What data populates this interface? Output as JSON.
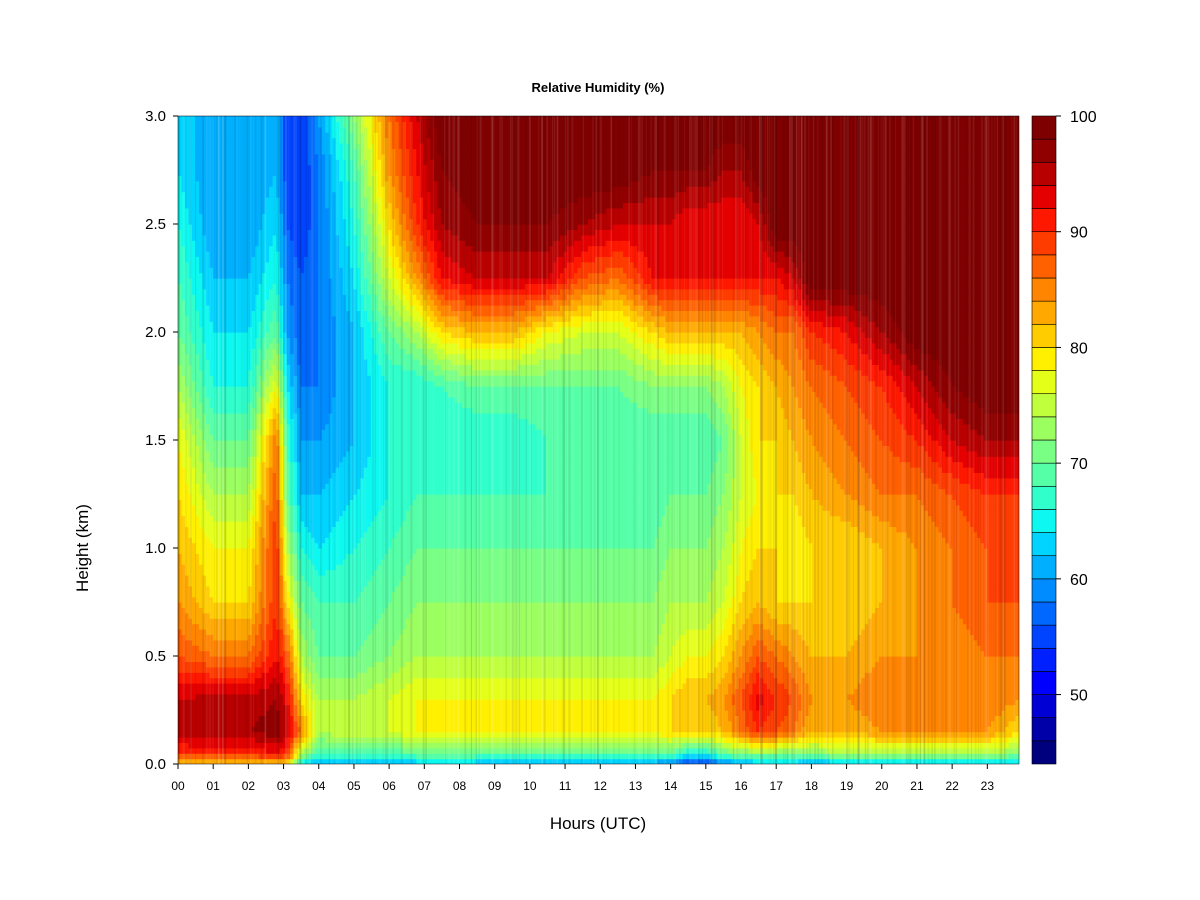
{
  "chart_data": {
    "type": "heatmap",
    "title": "Relative Humidity (%)",
    "xlabel": "Hours (UTC)",
    "ylabel": "Height (km)",
    "xlim": [
      0,
      23.9
    ],
    "ylim": [
      0,
      3
    ],
    "x_ticks": [
      "00",
      "01",
      "02",
      "03",
      "04",
      "05",
      "06",
      "07",
      "08",
      "09",
      "10",
      "11",
      "12",
      "13",
      "14",
      "15",
      "16",
      "17",
      "18",
      "19",
      "20",
      "21",
      "22",
      "23"
    ],
    "y_ticks": [
      "0.0",
      "0.5",
      "1.0",
      "1.5",
      "2.0",
      "2.5",
      "3.0"
    ],
    "colorbar": {
      "min": 44,
      "max": 100,
      "step": 2,
      "tick_values": [
        50,
        60,
        70,
        80,
        90,
        100
      ],
      "tick_labels": [
        "50",
        "60",
        "70",
        "80",
        "90",
        "100"
      ],
      "colors": [
        "#00007f",
        "#0000a8",
        "#0000d4",
        "#0000ff",
        "#0020ff",
        "#0044ff",
        "#0068ff",
        "#008cff",
        "#00b0ff",
        "#00d4ff",
        "#0cf8f0",
        "#30ffcc",
        "#54ffa8",
        "#78ff84",
        "#9cff60",
        "#c0ff3c",
        "#e4ff18",
        "#fff000",
        "#ffcc00",
        "#ffa800",
        "#ff8400",
        "#ff6000",
        "#ff3c00",
        "#ff1800",
        "#e40000",
        "#b80000",
        "#900000",
        "#7f0000"
      ]
    },
    "grid": false,
    "legend": "right",
    "z_grid": {
      "x": [
        0,
        1,
        2,
        2.8,
        3.1,
        3.5,
        4,
        5,
        6,
        6.8,
        7.5,
        8.5,
        9.5,
        10.5,
        11.5,
        12.5,
        13.5,
        14,
        14.5,
        15,
        15.5,
        16,
        16.5,
        17,
        17.5,
        18,
        19,
        20,
        21,
        22,
        23,
        23.9
      ],
      "y": [
        0,
        0.05,
        0.15,
        0.3,
        0.5,
        0.75,
        1,
        1.25,
        1.5,
        1.75,
        2,
        2.25,
        2.5,
        2.75,
        3
      ],
      "z": [
        [
          80,
          80,
          80,
          80,
          80,
          64,
          60,
          62,
          62,
          62,
          62,
          62,
          60,
          60,
          60,
          60,
          60,
          58,
          54,
          54,
          58,
          60,
          62,
          62,
          62,
          60,
          62,
          62,
          62,
          62,
          62,
          62
        ],
        [
          90,
          90,
          90,
          92,
          90,
          74,
          68,
          68,
          68,
          70,
          70,
          70,
          70,
          70,
          70,
          70,
          70,
          70,
          66,
          66,
          70,
          72,
          72,
          72,
          72,
          72,
          74,
          74,
          74,
          74,
          74,
          72
        ],
        [
          95,
          96,
          96,
          97,
          95,
          85,
          74,
          76,
          76,
          78,
          78,
          78,
          78,
          78,
          78,
          78,
          78,
          80,
          80,
          80,
          82,
          86,
          90,
          88,
          86,
          82,
          82,
          84,
          84,
          84,
          84,
          80
        ],
        [
          94,
          95,
          95,
          96,
          93,
          80,
          74,
          74,
          76,
          78,
          78,
          78,
          78,
          78,
          78,
          78,
          78,
          80,
          82,
          82,
          84,
          88,
          93,
          90,
          88,
          84,
          84,
          86,
          86,
          86,
          86,
          84
        ],
        [
          88,
          86,
          86,
          92,
          88,
          74,
          70,
          70,
          72,
          74,
          74,
          74,
          74,
          74,
          74,
          74,
          74,
          76,
          78,
          78,
          80,
          84,
          88,
          86,
          84,
          82,
          82,
          84,
          84,
          84,
          86,
          86
        ],
        [
          84,
          80,
          80,
          90,
          80,
          70,
          68,
          68,
          70,
          72,
          72,
          72,
          72,
          72,
          72,
          72,
          72,
          74,
          74,
          74,
          76,
          80,
          82,
          80,
          80,
          80,
          80,
          82,
          84,
          86,
          88,
          88
        ],
        [
          82,
          78,
          78,
          90,
          74,
          66,
          64,
          66,
          68,
          70,
          70,
          70,
          70,
          70,
          70,
          70,
          70,
          72,
          72,
          72,
          74,
          78,
          80,
          80,
          78,
          80,
          80,
          82,
          84,
          86,
          88,
          88
        ],
        [
          80,
          74,
          74,
          88,
          70,
          62,
          62,
          64,
          66,
          68,
          68,
          68,
          68,
          68,
          68,
          68,
          68,
          70,
          70,
          70,
          72,
          76,
          78,
          80,
          80,
          82,
          84,
          86,
          86,
          88,
          90,
          90
        ],
        [
          78,
          70,
          70,
          86,
          68,
          60,
          60,
          62,
          66,
          66,
          66,
          66,
          66,
          68,
          68,
          68,
          68,
          68,
          68,
          68,
          70,
          76,
          80,
          80,
          82,
          84,
          86,
          88,
          90,
          94,
          96,
          96
        ],
        [
          74,
          66,
          66,
          78,
          64,
          58,
          58,
          62,
          66,
          66,
          68,
          70,
          70,
          70,
          70,
          70,
          72,
          72,
          72,
          72,
          74,
          78,
          80,
          82,
          84,
          86,
          88,
          90,
          94,
          98,
          100,
          100
        ],
        [
          70,
          64,
          64,
          70,
          60,
          56,
          58,
          62,
          70,
          74,
          80,
          82,
          82,
          78,
          76,
          76,
          80,
          82,
          82,
          82,
          82,
          82,
          84,
          86,
          86,
          90,
          92,
          96,
          100,
          100,
          100,
          100
        ],
        [
          68,
          62,
          62,
          66,
          58,
          56,
          58,
          64,
          76,
          84,
          92,
          94,
          94,
          94,
          88,
          86,
          92,
          92,
          92,
          92,
          92,
          92,
          92,
          92,
          94,
          100,
          100,
          100,
          100,
          100,
          100,
          100
        ],
        [
          66,
          60,
          60,
          64,
          56,
          54,
          58,
          66,
          80,
          90,
          96,
          98,
          98,
          98,
          96,
          94,
          94,
          94,
          92,
          92,
          92,
          92,
          94,
          100,
          100,
          100,
          100,
          100,
          100,
          100,
          100,
          100
        ],
        [
          64,
          60,
          60,
          62,
          54,
          54,
          58,
          68,
          84,
          92,
          98,
          100,
          100,
          100,
          100,
          100,
          98,
          98,
          98,
          98,
          96,
          96,
          100,
          100,
          100,
          100,
          100,
          100,
          100,
          100,
          100,
          100
        ],
        [
          64,
          60,
          60,
          62,
          54,
          54,
          60,
          72,
          86,
          94,
          100,
          100,
          100,
          100,
          100,
          100,
          100,
          100,
          100,
          100,
          100,
          100,
          100,
          100,
          100,
          100,
          100,
          100,
          100,
          100,
          100,
          100
        ]
      ]
    }
  }
}
